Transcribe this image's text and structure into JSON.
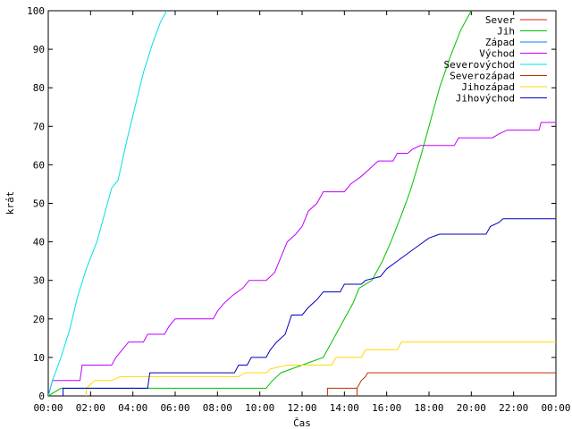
{
  "chart_data": {
    "type": "line",
    "xlabel": "Čas",
    "ylabel": "krát",
    "xlim": [
      0,
      24
    ],
    "ylim": [
      0,
      100
    ],
    "grid": false,
    "legend_position": "top-right",
    "x_unit": "hours",
    "x_ticks": [
      {
        "x": 0,
        "label": "00:00"
      },
      {
        "x": 2,
        "label": "02:00"
      },
      {
        "x": 4,
        "label": "04:00"
      },
      {
        "x": 6,
        "label": "06:00"
      },
      {
        "x": 8,
        "label": "08:00"
      },
      {
        "x": 10,
        "label": "10:00"
      },
      {
        "x": 12,
        "label": "12:00"
      },
      {
        "x": 14,
        "label": "14:00"
      },
      {
        "x": 16,
        "label": "16:00"
      },
      {
        "x": 18,
        "label": "18:00"
      },
      {
        "x": 20,
        "label": "20:00"
      },
      {
        "x": 22,
        "label": "22:00"
      },
      {
        "x": 24,
        "label": "00:00"
      }
    ],
    "y_ticks": [
      0,
      10,
      20,
      30,
      40,
      50,
      60,
      70,
      80,
      90,
      100
    ],
    "series": [
      {
        "name": "Sever",
        "color": "#e41a1c",
        "points": []
      },
      {
        "name": "Jih",
        "color": "#00c000",
        "points": [
          [
            0,
            0
          ],
          [
            0.6,
            2
          ],
          [
            10.3,
            2
          ],
          [
            10.6,
            4
          ],
          [
            11.0,
            6
          ],
          [
            12.0,
            8
          ],
          [
            13.0,
            10
          ],
          [
            13.5,
            15
          ],
          [
            14.0,
            20
          ],
          [
            14.4,
            24
          ],
          [
            14.7,
            28
          ],
          [
            15.3,
            30
          ],
          [
            15.8,
            35
          ],
          [
            16.2,
            40
          ],
          [
            16.7,
            47
          ],
          [
            17.1,
            53
          ],
          [
            17.6,
            62
          ],
          [
            18.0,
            70
          ],
          [
            18.5,
            80
          ],
          [
            19.0,
            88
          ],
          [
            19.5,
            95
          ],
          [
            20.0,
            100
          ]
        ]
      },
      {
        "name": "Západ",
        "color": "#0080ff",
        "points": []
      },
      {
        "name": "Východ",
        "color": "#c000ff",
        "points": [
          [
            0,
            0
          ],
          [
            0.2,
            4
          ],
          [
            1.5,
            4
          ],
          [
            1.6,
            8
          ],
          [
            3.0,
            8
          ],
          [
            3.2,
            10
          ],
          [
            3.5,
            12
          ],
          [
            3.8,
            14
          ],
          [
            4.5,
            14
          ],
          [
            4.7,
            16
          ],
          [
            5.5,
            16
          ],
          [
            5.7,
            18
          ],
          [
            6.0,
            20
          ],
          [
            7.8,
            20
          ],
          [
            8.0,
            22
          ],
          [
            8.3,
            24
          ],
          [
            8.7,
            26
          ],
          [
            9.2,
            28
          ],
          [
            9.5,
            30
          ],
          [
            10.3,
            30
          ],
          [
            10.7,
            32
          ],
          [
            11.0,
            36
          ],
          [
            11.3,
            40
          ],
          [
            11.7,
            42
          ],
          [
            12.0,
            44
          ],
          [
            12.3,
            48
          ],
          [
            12.7,
            50
          ],
          [
            13.0,
            53
          ],
          [
            14.0,
            53
          ],
          [
            14.3,
            55
          ],
          [
            14.8,
            57
          ],
          [
            15.2,
            59
          ],
          [
            15.6,
            61
          ],
          [
            16.3,
            61
          ],
          [
            16.5,
            63
          ],
          [
            17.0,
            63
          ],
          [
            17.2,
            64
          ],
          [
            17.6,
            65
          ],
          [
            19.2,
            65
          ],
          [
            19.4,
            67
          ],
          [
            21.0,
            67
          ],
          [
            21.3,
            68
          ],
          [
            21.7,
            69
          ],
          [
            23.2,
            69
          ],
          [
            23.3,
            71
          ],
          [
            24,
            71
          ]
        ]
      },
      {
        "name": "Severovýchod",
        "color": "#00e0e0",
        "points": [
          [
            0,
            0
          ],
          [
            0.2,
            4
          ],
          [
            0.6,
            10
          ],
          [
            1.0,
            17
          ],
          [
            1.4,
            26
          ],
          [
            1.8,
            33
          ],
          [
            2.3,
            40
          ],
          [
            2.6,
            46
          ],
          [
            3.0,
            54
          ],
          [
            3.3,
            56
          ],
          [
            3.7,
            66
          ],
          [
            4.1,
            75
          ],
          [
            4.5,
            84
          ],
          [
            4.9,
            91
          ],
          [
            5.3,
            97
          ],
          [
            5.6,
            100
          ]
        ]
      },
      {
        "name": "Severozápad",
        "color": "#c03000",
        "points": [
          [
            13.2,
            0
          ],
          [
            13.2,
            2
          ],
          [
            14.6,
            2
          ],
          [
            14.6,
            0
          ],
          [
            14.6,
            2
          ],
          [
            14.8,
            4
          ],
          [
            15.0,
            5
          ],
          [
            15.1,
            6
          ],
          [
            24,
            6
          ]
        ]
      },
      {
        "name": "Jihozápad",
        "color": "#ffd700",
        "points": [
          [
            1.8,
            0
          ],
          [
            1.8,
            2
          ],
          [
            2.2,
            4
          ],
          [
            3.0,
            4
          ],
          [
            3.4,
            5
          ],
          [
            9.0,
            5
          ],
          [
            9.3,
            6
          ],
          [
            10.3,
            6
          ],
          [
            10.5,
            7
          ],
          [
            11.3,
            8
          ],
          [
            13.4,
            8
          ],
          [
            13.6,
            10
          ],
          [
            14.8,
            10
          ],
          [
            15.0,
            12
          ],
          [
            16.5,
            12
          ],
          [
            16.7,
            14
          ],
          [
            24,
            14
          ]
        ]
      },
      {
        "name": "Jihovýchod",
        "color": "#0000c0",
        "points": [
          [
            0.7,
            0
          ],
          [
            0.7,
            2
          ],
          [
            4.7,
            2
          ],
          [
            4.8,
            6
          ],
          [
            8.8,
            6
          ],
          [
            9.0,
            8
          ],
          [
            9.4,
            8
          ],
          [
            9.6,
            10
          ],
          [
            10.3,
            10
          ],
          [
            10.5,
            12
          ],
          [
            10.8,
            14
          ],
          [
            11.2,
            16
          ],
          [
            11.5,
            21
          ],
          [
            12.0,
            21
          ],
          [
            12.3,
            23
          ],
          [
            12.7,
            25
          ],
          [
            13.0,
            27
          ],
          [
            13.8,
            27
          ],
          [
            14.0,
            29
          ],
          [
            14.8,
            29
          ],
          [
            15.0,
            30
          ],
          [
            15.7,
            31
          ],
          [
            16.0,
            33
          ],
          [
            16.5,
            35
          ],
          [
            17.0,
            37
          ],
          [
            17.5,
            39
          ],
          [
            18.0,
            41
          ],
          [
            18.5,
            42
          ],
          [
            20.7,
            42
          ],
          [
            20.9,
            44
          ],
          [
            21.3,
            45
          ],
          [
            21.5,
            46
          ],
          [
            24,
            46
          ]
        ]
      }
    ]
  }
}
